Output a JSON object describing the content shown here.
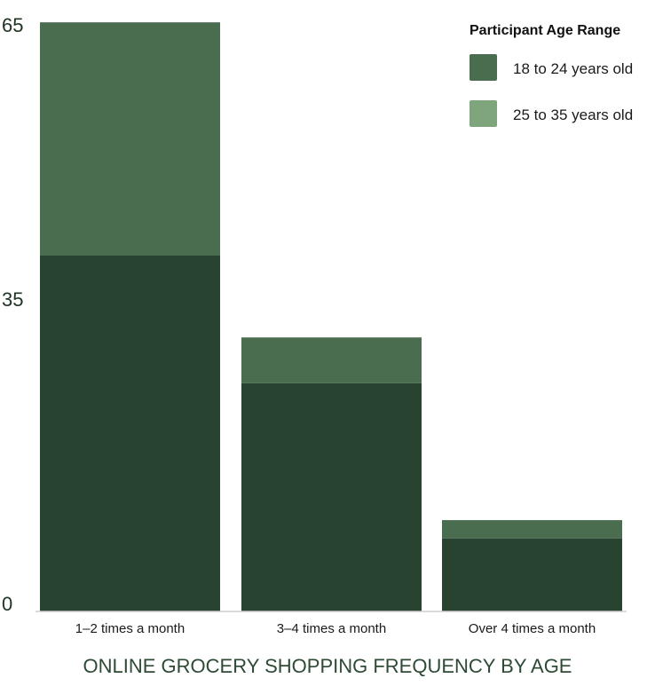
{
  "chart_data": {
    "type": "bar",
    "stacked": true,
    "title": "ONLINE GROCERY SHOPPING FREQUENCY BY AGE",
    "categories": [
      "1–2 times a month",
      "3–4 times a month",
      "Over 4 times a month"
    ],
    "series": [
      {
        "name": "18 to 24 years old",
        "values": [
          39,
          25,
          8
        ],
        "color": "#284330"
      },
      {
        "name": "25 to 35 years old",
        "values": [
          25.5,
          5,
          2
        ],
        "color": "#4a6d50"
      }
    ],
    "ylim": [
      0,
      65
    ],
    "yticks": [
      "0",
      "35",
      "65"
    ],
    "ytick_values": [
      0,
      35,
      65
    ],
    "legend": {
      "title": "Participant Age Range",
      "placement": "top-right",
      "items": [
        {
          "label": "18 to 24 years old",
          "color": "#4a6d50"
        },
        {
          "label": "25 to 35 years old",
          "color": "#7ea57c"
        }
      ]
    },
    "grid": false
  }
}
